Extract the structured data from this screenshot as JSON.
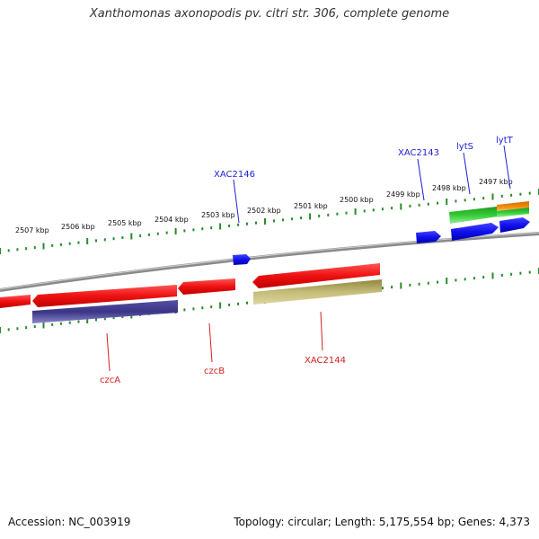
{
  "title": "Xanthomonas axonopodis pv. citri str. 306, complete genome",
  "footer": {
    "accession": "Accession: NC_003919",
    "info": "Topology: circular; Length: 5,175,554 bp; Genes: 4,373"
  },
  "kbp_labels": [
    "2507 kbp",
    "2506 kbp",
    "2505 kbp",
    "2504 kbp",
    "2503 kbp",
    "2502 kbp",
    "2501 kbp",
    "2500 kbp",
    "2499 kbp",
    "2498 kbp",
    "2497 kbp"
  ],
  "gene_labels_forward": [
    "XAC2146",
    "XAC2143",
    "lytS",
    "lytT"
  ],
  "gene_labels_reverse": [
    "czcA",
    "czcB",
    "XAC2144"
  ],
  "colors": {
    "red": "#ee1111",
    "navy": "#3a3585",
    "olive": "#b8b06a",
    "blue": "#1111ee",
    "green": "#33cc33",
    "orange": "#ee8800",
    "ticks": "#2a8a2a",
    "backbone": "#8a8a8a",
    "forward_label": "#1f1fd6",
    "reverse_label": "#d61f1f"
  }
}
